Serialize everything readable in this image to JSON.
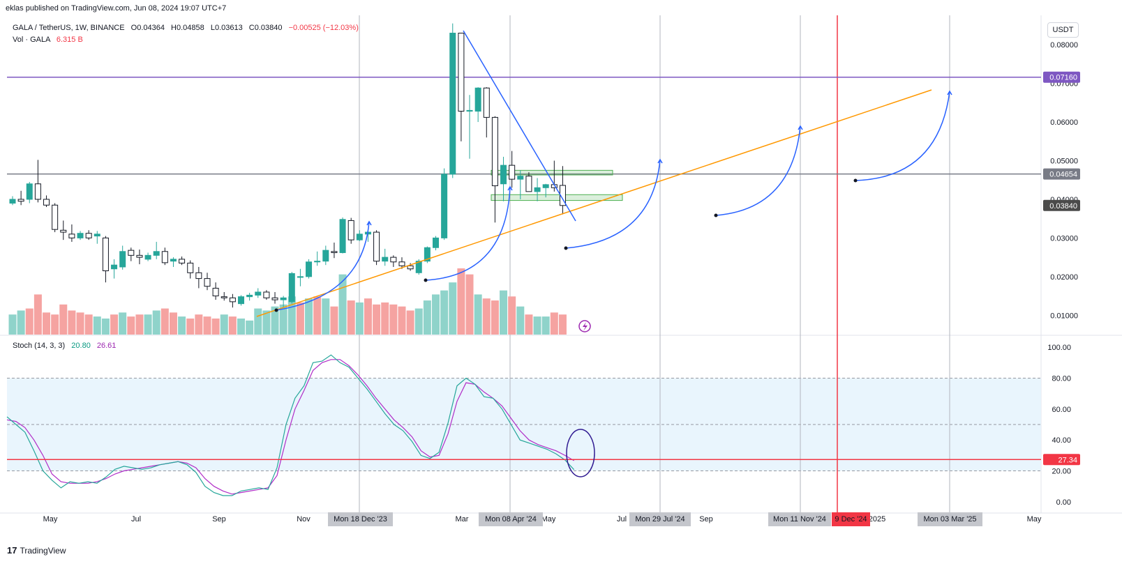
{
  "header": {
    "published": "eklas published on TradingView.com, Jun 08, 2024 19:07 UTC+7",
    "symbol": "GALA / TetherUS, 1W, BINANCE",
    "open": "O0.04364",
    "high": "H0.04858",
    "low": "L0.03613",
    "close": "C0.03840",
    "change": "−0.00525 (−12.03%)",
    "volume_label": "Vol · GALA",
    "volume_value": "6.315 B",
    "currency": "USDT"
  },
  "stoch_legend": {
    "label": "Stoch (14, 3, 3)",
    "k": "20.80",
    "d": "26.61"
  },
  "brand": {
    "logo": "17",
    "name": "TradingView"
  },
  "colors": {
    "up": "#26a69a",
    "down": "#ef5350",
    "vol_up": "#8fd3ca",
    "vol_down": "#f5a3a1",
    "k_line": "#26a69a",
    "d_line": "#b02dc7",
    "trend_orange": "#ff9800",
    "trend_blue": "#2962ff",
    "resistance_purple": "#7e57c2",
    "red_line": "#f23645"
  },
  "chart_data": [
    {
      "type": "candlestick",
      "title": "GALA / TetherUS, 1W, BINANCE",
      "y_scale": "price (USDT)",
      "ylim": [
        0.005,
        0.0876
      ],
      "y_ticks": [
        "0.08000",
        "0.07000",
        "0.06000",
        "0.05000",
        "0.04000",
        "0.03000",
        "0.02000",
        "0.01000"
      ],
      "x_ticks": [
        "May",
        "Jul",
        "Sep",
        "Nov",
        "Mar",
        "May",
        "Jul",
        "Sep",
        "2025",
        "May"
      ],
      "candles": [
        {
          "o": 0.039,
          "h": 0.0408,
          "l": 0.0385,
          "c": 0.04
        },
        {
          "o": 0.04,
          "h": 0.0422,
          "l": 0.0385,
          "c": 0.0395
        },
        {
          "o": 0.04,
          "h": 0.0445,
          "l": 0.039,
          "c": 0.044
        },
        {
          "o": 0.044,
          "h": 0.0502,
          "l": 0.0392,
          "c": 0.04
        },
        {
          "o": 0.04,
          "h": 0.041,
          "l": 0.038,
          "c": 0.0385
        },
        {
          "o": 0.0385,
          "h": 0.039,
          "l": 0.0315,
          "c": 0.0322
        },
        {
          "o": 0.032,
          "h": 0.0345,
          "l": 0.0295,
          "c": 0.0315
        },
        {
          "o": 0.031,
          "h": 0.0335,
          "l": 0.029,
          "c": 0.03
        },
        {
          "o": 0.03,
          "h": 0.0318,
          "l": 0.0295,
          "c": 0.0312
        },
        {
          "o": 0.0312,
          "h": 0.032,
          "l": 0.0295,
          "c": 0.03
        },
        {
          "o": 0.0305,
          "h": 0.0318,
          "l": 0.0285,
          "c": 0.031
        },
        {
          "o": 0.03,
          "h": 0.0305,
          "l": 0.0185,
          "c": 0.0215
        },
        {
          "o": 0.022,
          "h": 0.0245,
          "l": 0.0195,
          "c": 0.023
        },
        {
          "o": 0.0225,
          "h": 0.028,
          "l": 0.0218,
          "c": 0.0265
        },
        {
          "o": 0.0268,
          "h": 0.0275,
          "l": 0.024,
          "c": 0.0255
        },
        {
          "o": 0.0255,
          "h": 0.027,
          "l": 0.0232,
          "c": 0.025
        },
        {
          "o": 0.0245,
          "h": 0.0262,
          "l": 0.024,
          "c": 0.0255
        },
        {
          "o": 0.0255,
          "h": 0.029,
          "l": 0.0245,
          "c": 0.0265
        },
        {
          "o": 0.0265,
          "h": 0.0275,
          "l": 0.023,
          "c": 0.0236
        },
        {
          "o": 0.024,
          "h": 0.025,
          "l": 0.0225,
          "c": 0.0245
        },
        {
          "o": 0.0245,
          "h": 0.0252,
          "l": 0.023,
          "c": 0.0235
        },
        {
          "o": 0.0235,
          "h": 0.0242,
          "l": 0.0195,
          "c": 0.021
        },
        {
          "o": 0.021,
          "h": 0.0225,
          "l": 0.017,
          "c": 0.0195
        },
        {
          "o": 0.0195,
          "h": 0.021,
          "l": 0.0165,
          "c": 0.0175
        },
        {
          "o": 0.017,
          "h": 0.0185,
          "l": 0.014,
          "c": 0.015
        },
        {
          "o": 0.0148,
          "h": 0.016,
          "l": 0.0138,
          "c": 0.0145
        },
        {
          "o": 0.0145,
          "h": 0.0155,
          "l": 0.012,
          "c": 0.0135
        },
        {
          "o": 0.013,
          "h": 0.0152,
          "l": 0.0125,
          "c": 0.0148
        },
        {
          "o": 0.0148,
          "h": 0.0158,
          "l": 0.0138,
          "c": 0.0152
        },
        {
          "o": 0.0152,
          "h": 0.017,
          "l": 0.0145,
          "c": 0.016
        },
        {
          "o": 0.016,
          "h": 0.0165,
          "l": 0.014,
          "c": 0.0145
        },
        {
          "o": 0.0145,
          "h": 0.016,
          "l": 0.013,
          "c": 0.014
        },
        {
          "o": 0.014,
          "h": 0.015,
          "l": 0.012,
          "c": 0.0145
        },
        {
          "o": 0.0135,
          "h": 0.0212,
          "l": 0.013,
          "c": 0.0208
        },
        {
          "o": 0.0198,
          "h": 0.022,
          "l": 0.0175,
          "c": 0.02
        },
        {
          "o": 0.02,
          "h": 0.0245,
          "l": 0.0195,
          "c": 0.0238
        },
        {
          "o": 0.0238,
          "h": 0.0265,
          "l": 0.0228,
          "c": 0.024
        },
        {
          "o": 0.024,
          "h": 0.028,
          "l": 0.023,
          "c": 0.0268
        },
        {
          "o": 0.0265,
          "h": 0.0288,
          "l": 0.0248,
          "c": 0.0262
        },
        {
          "o": 0.0262,
          "h": 0.0353,
          "l": 0.026,
          "c": 0.0348
        },
        {
          "o": 0.0345,
          "h": 0.0352,
          "l": 0.0285,
          "c": 0.0295
        },
        {
          "o": 0.0295,
          "h": 0.032,
          "l": 0.0292,
          "c": 0.031
        },
        {
          "o": 0.031,
          "h": 0.0322,
          "l": 0.029,
          "c": 0.0315
        },
        {
          "o": 0.0315,
          "h": 0.032,
          "l": 0.023,
          "c": 0.024
        },
        {
          "o": 0.024,
          "h": 0.0272,
          "l": 0.0228,
          "c": 0.025
        },
        {
          "o": 0.025,
          "h": 0.0255,
          "l": 0.0225,
          "c": 0.0238
        },
        {
          "o": 0.0238,
          "h": 0.025,
          "l": 0.022,
          "c": 0.0228
        },
        {
          "o": 0.0228,
          "h": 0.0235,
          "l": 0.0215,
          "c": 0.022
        },
        {
          "o": 0.021,
          "h": 0.0245,
          "l": 0.0205,
          "c": 0.024
        },
        {
          "o": 0.024,
          "h": 0.0278,
          "l": 0.0235,
          "c": 0.0275
        },
        {
          "o": 0.0275,
          "h": 0.0305,
          "l": 0.0268,
          "c": 0.03
        },
        {
          "o": 0.03,
          "h": 0.048,
          "l": 0.0295,
          "c": 0.0465
        },
        {
          "o": 0.0465,
          "h": 0.0855,
          "l": 0.0455,
          "c": 0.083
        },
        {
          "o": 0.083,
          "h": 0.083,
          "l": 0.055,
          "c": 0.0628
        },
        {
          "o": 0.0628,
          "h": 0.067,
          "l": 0.0505,
          "c": 0.063
        },
        {
          "o": 0.0628,
          "h": 0.069,
          "l": 0.06,
          "c": 0.0688
        },
        {
          "o": 0.0688,
          "h": 0.069,
          "l": 0.056,
          "c": 0.0612
        },
        {
          "o": 0.0612,
          "h": 0.0615,
          "l": 0.034,
          "c": 0.0435
        },
        {
          "o": 0.044,
          "h": 0.051,
          "l": 0.0395,
          "c": 0.0488
        },
        {
          "o": 0.0488,
          "h": 0.0525,
          "l": 0.043,
          "c": 0.0452
        },
        {
          "o": 0.0452,
          "h": 0.0475,
          "l": 0.04,
          "c": 0.046
        },
        {
          "o": 0.046,
          "h": 0.047,
          "l": 0.0425,
          "c": 0.042
        },
        {
          "o": 0.042,
          "h": 0.0455,
          "l": 0.0395,
          "c": 0.043
        },
        {
          "o": 0.043,
          "h": 0.044,
          "l": 0.0405,
          "c": 0.0438
        },
        {
          "o": 0.0438,
          "h": 0.05,
          "l": 0.042,
          "c": 0.043
        },
        {
          "o": 0.0436,
          "h": 0.0486,
          "l": 0.0361,
          "c": 0.0384
        }
      ],
      "volume": [
        10,
        12,
        13,
        20,
        11,
        10,
        15,
        12,
        11,
        10,
        9,
        8,
        10,
        11,
        9,
        10,
        10,
        12,
        13,
        11,
        9,
        8,
        10,
        9,
        8,
        10,
        9,
        8,
        7,
        13,
        12,
        14,
        15,
        19,
        16,
        18,
        19,
        18,
        14,
        30,
        17,
        16,
        18,
        15,
        16,
        15,
        14,
        12,
        13,
        17,
        20,
        22,
        26,
        33,
        30,
        20,
        18,
        17,
        22,
        19,
        14,
        10,
        9,
        9,
        11,
        10
      ],
      "volume_dir": [
        "up",
        "up",
        "down",
        "down",
        "down",
        "down",
        "down",
        "down",
        "down",
        "down",
        "up",
        "up",
        "down",
        "up",
        "down",
        "down",
        "up",
        "up",
        "down",
        "down",
        "up",
        "down",
        "down",
        "down",
        "down",
        "up",
        "down",
        "up",
        "up",
        "up",
        "up",
        "up",
        "up",
        "up",
        "down",
        "up",
        "down",
        "up",
        "down",
        "up",
        "down",
        "up",
        "down",
        "down",
        "down",
        "down",
        "down",
        "down",
        "up",
        "up",
        "up",
        "up",
        "up",
        "down",
        "down",
        "up",
        "down",
        "down",
        "up",
        "down",
        "up",
        "down",
        "up",
        "up",
        "down",
        "down"
      ],
      "price_levels": [
        {
          "value": 0.0716,
          "label": "0.07160"
        },
        {
          "value": 0.04654,
          "label": "0.04654"
        },
        {
          "value": 0.0384,
          "label": "0.03840"
        }
      ],
      "date_labels": [
        "Mon 18 Dec '23",
        "Mon 08 Apr '24",
        "Mon 29 Jul '24",
        "Mon 11 Nov '24",
        "9 Dec '24",
        "Mon 03 Mar '25"
      ]
    },
    {
      "type": "line",
      "title": "Stoch (14, 3, 3)",
      "ylim": [
        -5,
        105
      ],
      "y_ticks": [
        "100.00",
        "80.00",
        "60.00",
        "40.00",
        "20.00",
        "0.00"
      ],
      "series": [
        {
          "name": "%K",
          "values": [
            55,
            50,
            45,
            33,
            20,
            14,
            9,
            13,
            12,
            13,
            12,
            16,
            21,
            23,
            22,
            21,
            22,
            24,
            25,
            26,
            24,
            19,
            10,
            6,
            4,
            4,
            7,
            8,
            9,
            8,
            22,
            50,
            67,
            75,
            90,
            91,
            95,
            90,
            87,
            80,
            73,
            65,
            57,
            50,
            46,
            39,
            30,
            28,
            32,
            51,
            75,
            80,
            76,
            68,
            67,
            60,
            50,
            40,
            38,
            36,
            34,
            31,
            27,
            20.8
          ],
          "x_range": "full"
        },
        {
          "name": "%D",
          "values": [
            53,
            52,
            48,
            40,
            30,
            18,
            13,
            12,
            12,
            12,
            13,
            15,
            18,
            20,
            21,
            22,
            23,
            24,
            25,
            26,
            25,
            22,
            15,
            10,
            7,
            5,
            6,
            7,
            8,
            9,
            17,
            40,
            60,
            72,
            85,
            90,
            92,
            92,
            88,
            82,
            75,
            67,
            60,
            53,
            48,
            42,
            33,
            29,
            30,
            44,
            65,
            77,
            76,
            71,
            67,
            62,
            54,
            46,
            40,
            37,
            35,
            33,
            30,
            26.61
          ]
        }
      ],
      "levels": [
        {
          "value": 80
        },
        {
          "value": 50
        },
        {
          "value": 20
        },
        {
          "value": 27.34,
          "label": "27.34"
        }
      ]
    }
  ]
}
